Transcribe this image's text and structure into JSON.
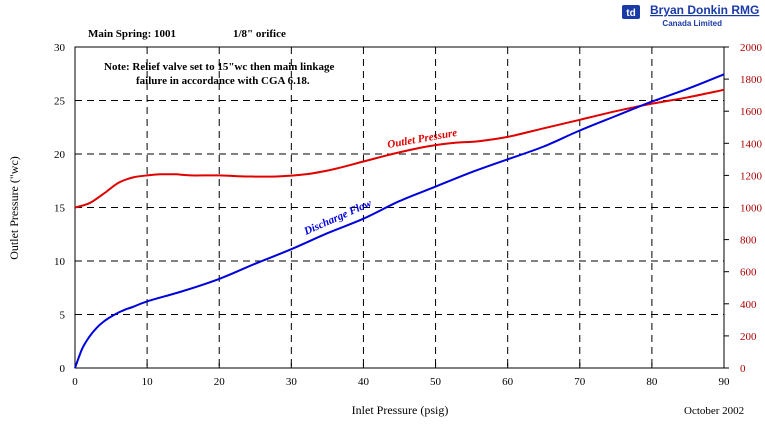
{
  "header": {
    "main_spring": "Main Spring: 1001",
    "orifice": "1/8\" orifice",
    "logo_line1": "Bryan Donkin RMG",
    "logo_line2": "Canada Limited"
  },
  "note": {
    "line1": "Note: Relief valve set to 15\"wc then main linkage",
    "line2": "failure in accordance with CGA 6.18."
  },
  "footer": {
    "date": "October 2002"
  },
  "colors": {
    "outlet": "#e00000",
    "flow": "#0000dd",
    "right_axis": "#b00000",
    "logo": "#1a3aa8"
  },
  "chart_data": {
    "type": "line",
    "xlabel": "Inlet Pressure (psig)",
    "ylabel": "Outlet Pressure (\"wc)",
    "xlim": [
      0,
      90
    ],
    "ylim": [
      0,
      30
    ],
    "y2lim": [
      0,
      2000
    ],
    "xticks": [
      "0",
      "10",
      "20",
      "30",
      "40",
      "50",
      "60",
      "70",
      "80",
      "90"
    ],
    "yticks": [
      "0",
      "5",
      "10",
      "15",
      "20",
      "25",
      "30"
    ],
    "y2ticks": [
      "0",
      "200",
      "400",
      "600",
      "800",
      "1000",
      "1200",
      "1400",
      "1600",
      "1800",
      "2000"
    ],
    "grid": true,
    "series": [
      {
        "name": "Outlet Pressure",
        "axis": "left",
        "x": [
          0,
          2,
          4,
          6,
          8,
          10,
          12,
          14,
          16,
          20,
          24,
          28,
          32,
          36,
          40,
          44,
          48,
          52,
          56,
          60,
          65,
          70,
          75,
          80,
          85,
          90
        ],
        "y": [
          15.0,
          15.4,
          16.3,
          17.3,
          17.8,
          18.0,
          18.1,
          18.1,
          18.0,
          18.0,
          17.9,
          17.9,
          18.1,
          18.6,
          19.3,
          20.0,
          20.6,
          21.0,
          21.2,
          21.6,
          22.4,
          23.2,
          24.0,
          24.7,
          25.3,
          26.0
        ]
      },
      {
        "name": "Discharge Flow",
        "axis": "right",
        "x": [
          0,
          1,
          2,
          3,
          4,
          5,
          6,
          7,
          8,
          10,
          15,
          20,
          25,
          30,
          35,
          40,
          45,
          50,
          55,
          60,
          65,
          70,
          75,
          80,
          85,
          90
        ],
        "y": [
          0,
          120,
          195,
          250,
          290,
          320,
          345,
          365,
          380,
          415,
          480,
          555,
          650,
          740,
          840,
          930,
          1040,
          1130,
          1220,
          1300,
          1380,
          1480,
          1570,
          1660,
          1740,
          1830
        ]
      }
    ]
  }
}
